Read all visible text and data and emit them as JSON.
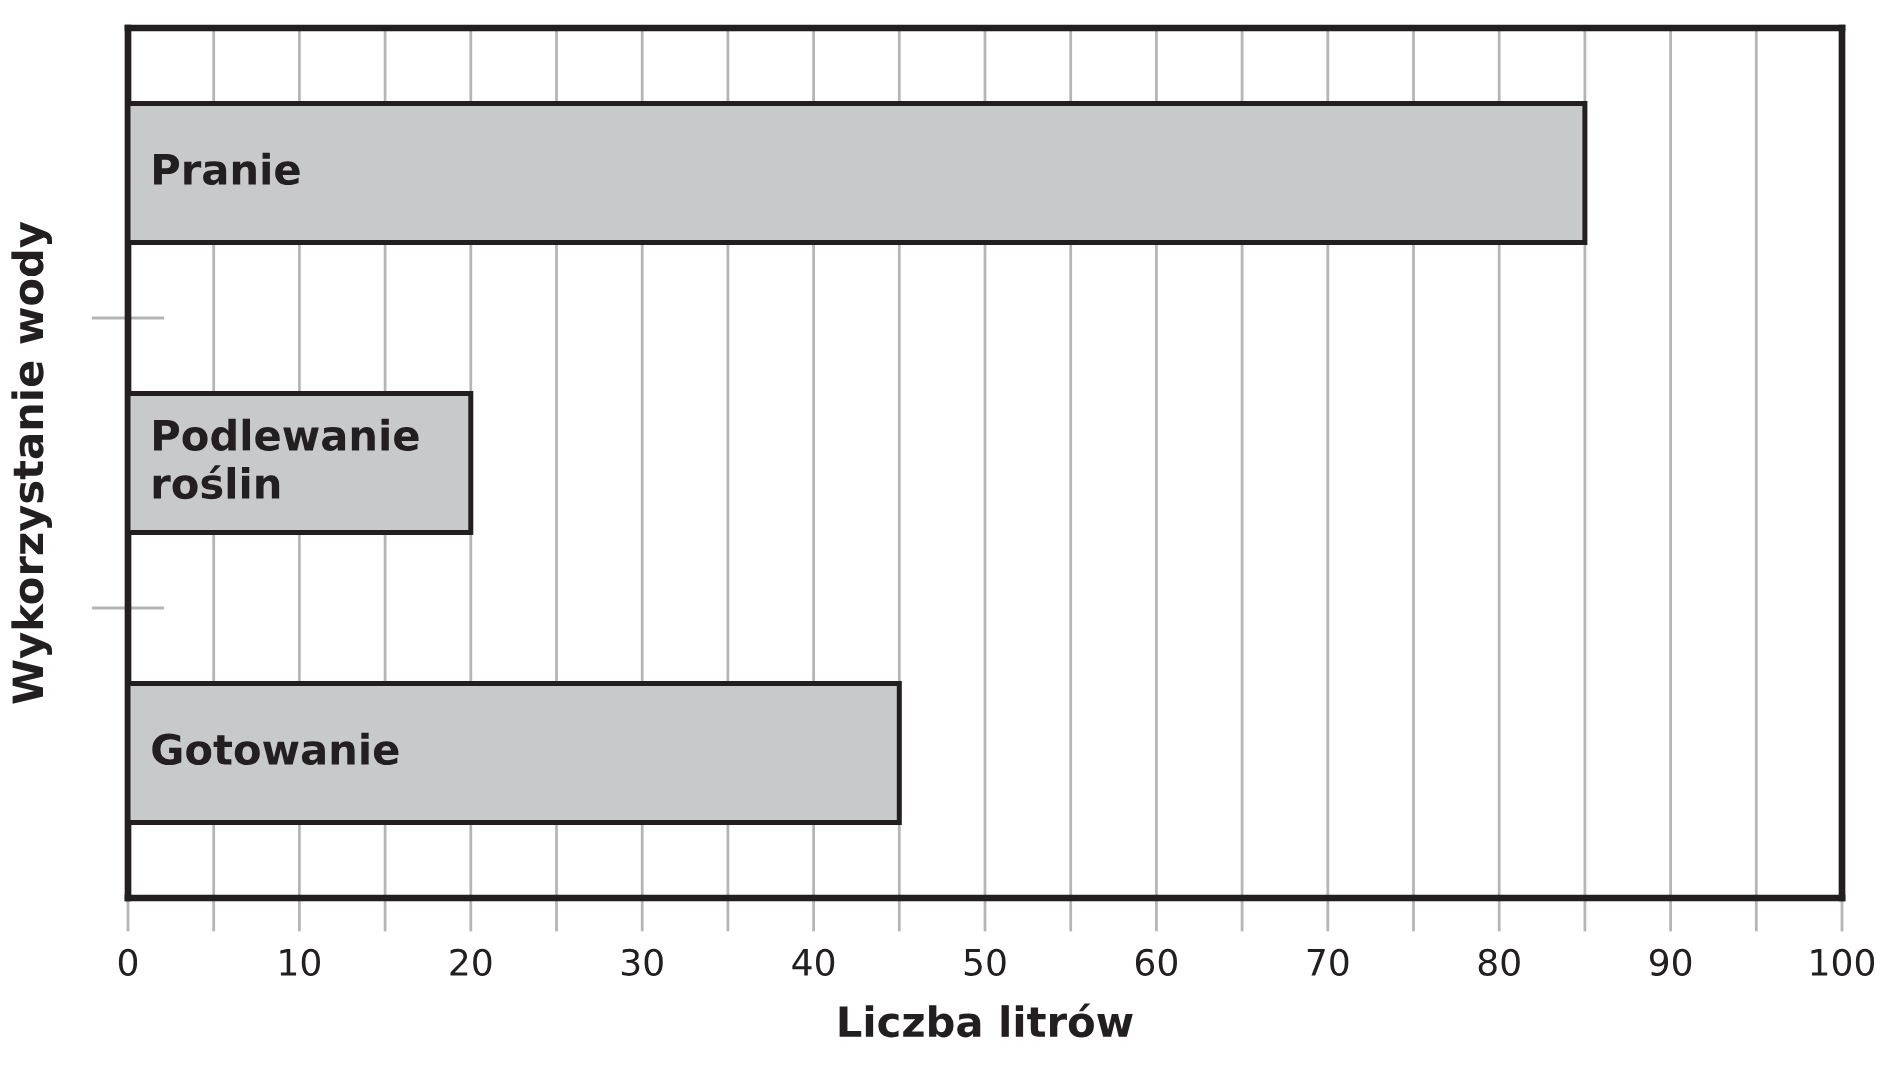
{
  "chart_data": {
    "type": "bar",
    "orientation": "horizontal",
    "xlabel": "Liczba litrów",
    "ylabel": "Wykorzystanie wody",
    "categories": [
      "Pranie",
      "Podlewanie\nroślin",
      "Gotowanie"
    ],
    "values": [
      85,
      20,
      45
    ],
    "color": "#c8c9ca",
    "xlim": [
      0,
      100
    ],
    "xticks": [
      0,
      {
        "value": 5,
        "label": null
      },
      10,
      {
        "value": 15,
        "label": null
      },
      20,
      {
        "value": 25,
        "label": null
      },
      30,
      {
        "value": 35,
        "label": null
      },
      40,
      {
        "value": 45,
        "label": null
      },
      50,
      {
        "value": 55,
        "label": null
      },
      60,
      {
        "value": 65,
        "label": null
      },
      70,
      {
        "value": 75,
        "label": null
      },
      80,
      {
        "value": 85,
        "label": null
      },
      90,
      {
        "value": 95,
        "label": null
      },
      100
    ],
    "grid": "x"
  }
}
